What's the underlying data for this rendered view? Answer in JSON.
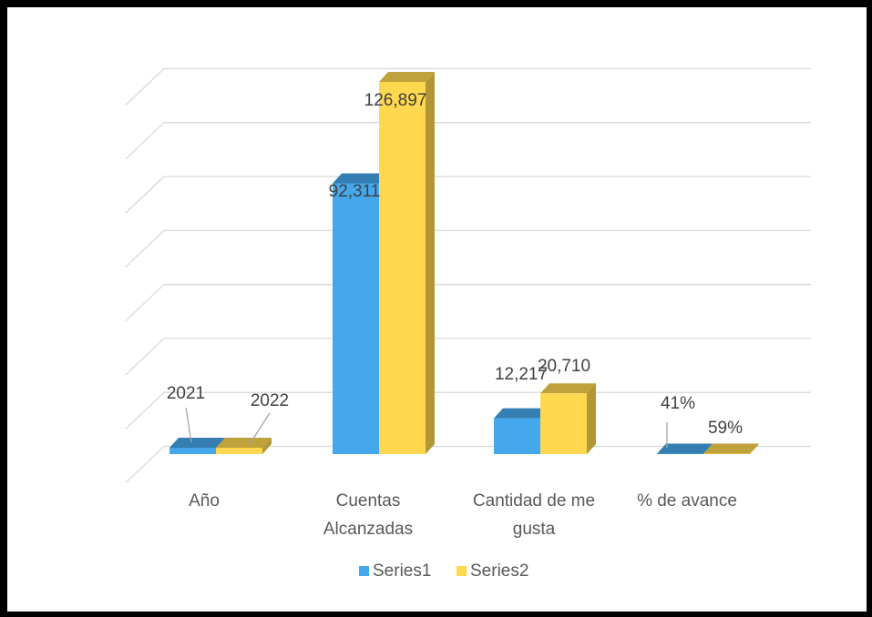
{
  "chart_data": {
    "type": "bar",
    "title": "",
    "xlabel": "",
    "ylabel": "",
    "ylim": [
      0,
      140000
    ],
    "grid": true,
    "legend_position": "bottom",
    "categories": [
      [
        "Año"
      ],
      [
        "Cuentas",
        "Alcanzadas"
      ],
      [
        "Cantidad de me",
        "gusta"
      ],
      [
        "% de avance"
      ]
    ],
    "series": [
      {
        "name": "Series1",
        "color": "#45A8EC",
        "values": [
          2021,
          92311,
          12217,
          41
        ],
        "labels": [
          "2021",
          "92,311",
          "12,217",
          "41%"
        ]
      },
      {
        "name": "Series2",
        "color": "#FFD84F",
        "values": [
          2022,
          126897,
          20710,
          59
        ],
        "labels": [
          "2022",
          "126,897",
          "20,710",
          "59%"
        ]
      }
    ]
  }
}
